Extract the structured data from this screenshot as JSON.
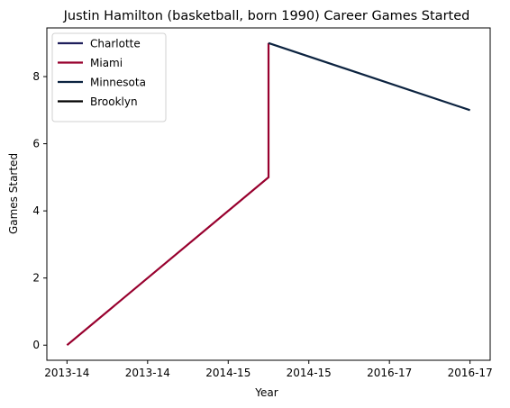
{
  "chart_data": {
    "type": "line",
    "title": "Justin Hamilton (basketball, born 1990) Career Games Started",
    "xlabel": "Year",
    "ylabel": "Games Started",
    "x_tick_labels": [
      "2013-14",
      "2013-14",
      "2014-15",
      "2014-15",
      "2016-17",
      "2016-17"
    ],
    "y_ticks": [
      0,
      2,
      4,
      6,
      8
    ],
    "ylim": [
      -0.45,
      9.45
    ],
    "grid": false,
    "legend_position": "top-left",
    "series": [
      {
        "name": "Charlotte",
        "color": "#1f1f5c",
        "points": []
      },
      {
        "name": "Miami",
        "color": "#98002e",
        "points": [
          [
            0,
            0
          ],
          [
            2.5,
            5
          ],
          [
            2.5,
            9
          ]
        ]
      },
      {
        "name": "Minnesota",
        "color": "#0c2340",
        "points": [
          [
            2.5,
            9
          ],
          [
            5,
            7
          ]
        ]
      },
      {
        "name": "Brooklyn",
        "color": "#000000",
        "points": []
      }
    ]
  }
}
